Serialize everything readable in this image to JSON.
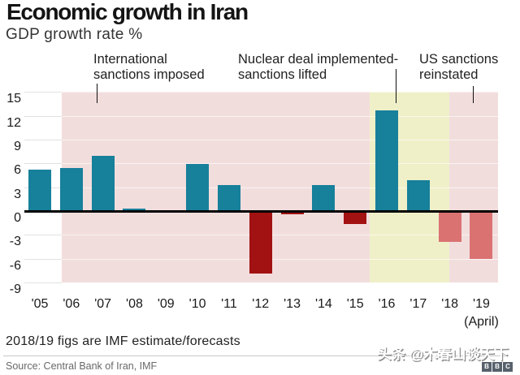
{
  "title": "Economic growth in Iran",
  "subtitle": "GDP growth rate %",
  "annotations": [
    {
      "name": "international-sanctions-imposed",
      "lines": [
        "International",
        "sanctions imposed"
      ]
    },
    {
      "name": "nuclear-deal-implemented",
      "lines": [
        "Nuclear deal implemented-",
        "sanctions lifted"
      ]
    },
    {
      "name": "us-sanctions-reinstated",
      "lines": [
        "US sanctions",
        "reinstated"
      ]
    }
  ],
  "chart_data": {
    "type": "bar",
    "title": "Economic growth in Iran",
    "subtitle": "GDP growth rate %",
    "categories": [
      "'05",
      "'06",
      "'07",
      "'08",
      "'09",
      "'10",
      "'11",
      "'12",
      "'13",
      "'14",
      "'15",
      "'16",
      "'17",
      "'18",
      "'19"
    ],
    "values": [
      5.2,
      5.4,
      6.9,
      0.3,
      0,
      5.9,
      3.3,
      -7.9,
      -0.4,
      3.3,
      -1.6,
      12.7,
      3.9,
      -3.9,
      -6.0
    ],
    "bar_color_keys": [
      "teal",
      "teal",
      "teal",
      "teal",
      "teal",
      "teal",
      "teal",
      "dark_red",
      "dark_red",
      "teal",
      "dark_red",
      "teal",
      "teal",
      "salmon",
      "salmon"
    ],
    "y_ticks": [
      15,
      12,
      9,
      6,
      3,
      0,
      -3,
      -6,
      -9
    ],
    "ylim": [
      -9,
      15
    ],
    "grid": true,
    "x_sub_label": {
      "year": "'19",
      "label": "(April)"
    },
    "regions": [
      {
        "label": "international sanctions period",
        "color_key": "pink",
        "from_index": 0.69,
        "to_index": 10.46
      },
      {
        "label": "sanctions lifted period",
        "color_key": "yellow",
        "from_index": 10.46,
        "to_index": 12.98
      },
      {
        "label": "us sanctions period",
        "color_key": "pink",
        "from_index": 12.98,
        "to_index": 14.53
      }
    ]
  },
  "footnote": "2018/19 figs are IMF estimate/forecasts",
  "source": "Source: Central Bank of Iran, IMF",
  "watermark": "头条 @木春山谈天下",
  "logo": {
    "letters": [
      "B",
      "B",
      "C"
    ]
  },
  "colors": {
    "teal": "#17809b",
    "dark_red": "#a21212",
    "salmon": "#da7272",
    "pink_region": "#f2dddd",
    "yellow_region": "#eff0c8",
    "axis": "#000000",
    "grid_white": "rgba(255,255,255,0.62)",
    "grid_gray": "#e2e2e2",
    "divider": "#c9c9c9",
    "text_dark": "#1a1a1a",
    "text_gray": "#686868",
    "bbc_block": "#57616c"
  }
}
